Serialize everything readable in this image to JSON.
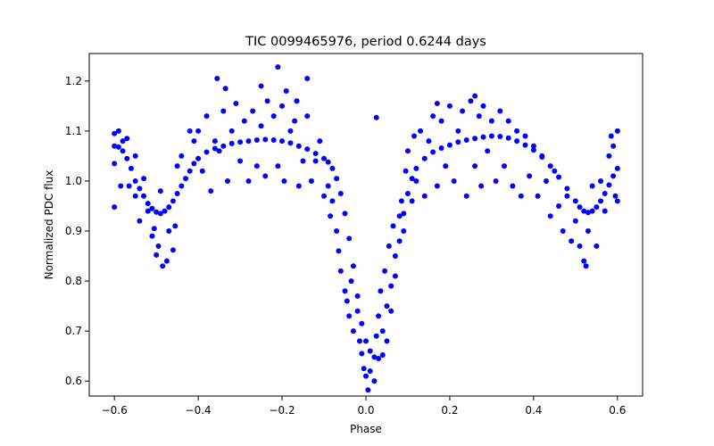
{
  "chart_data": {
    "type": "scatter",
    "title": "TIC 0099465976, period 0.6244 days",
    "xlabel": "Phase",
    "ylabel": "Normalized PDC flux",
    "xlim": [
      -0.66,
      0.66
    ],
    "ylim": [
      0.57,
      1.255
    ],
    "xticks": [
      -0.6,
      -0.4,
      -0.2,
      0.0,
      0.2,
      0.4,
      0.6
    ],
    "xtick_labels": [
      "−0.6",
      "−0.4",
      "−0.2",
      "0.0",
      "0.2",
      "0.4",
      "0.6"
    ],
    "yticks": [
      0.6,
      0.7,
      0.8,
      0.9,
      1.0,
      1.1,
      1.2
    ],
    "ytick_labels": [
      "0.6",
      "0.7",
      "0.8",
      "0.9",
      "1.0",
      "1.1",
      "1.2"
    ],
    "grid": false,
    "marker_color": "#0000ff",
    "series": [
      {
        "points": [
          [
            -0.6,
            1.07
          ],
          [
            -0.59,
            1.068
          ],
          [
            -0.58,
            1.06
          ],
          [
            -0.57,
            1.045
          ],
          [
            -0.56,
            1.025
          ],
          [
            -0.55,
            1.0
          ],
          [
            -0.54,
            0.985
          ],
          [
            -0.53,
            0.97
          ],
          [
            -0.52,
            0.955
          ],
          [
            -0.51,
            0.945
          ],
          [
            -0.5,
            0.938
          ],
          [
            -0.49,
            0.935
          ],
          [
            -0.48,
            0.94
          ],
          [
            -0.47,
            0.948
          ],
          [
            -0.46,
            0.96
          ],
          [
            -0.45,
            0.975
          ],
          [
            -0.44,
            0.99
          ],
          [
            -0.43,
            1.005
          ],
          [
            -0.42,
            1.02
          ],
          [
            -0.41,
            1.035
          ],
          [
            -0.4,
            1.045
          ],
          [
            -0.38,
            1.058
          ],
          [
            -0.36,
            1.065
          ],
          [
            -0.34,
            1.07
          ],
          [
            -0.32,
            1.075
          ],
          [
            -0.3,
            1.078
          ],
          [
            -0.28,
            1.08
          ],
          [
            -0.26,
            1.082
          ],
          [
            -0.24,
            1.083
          ],
          [
            -0.22,
            1.082
          ],
          [
            -0.2,
            1.08
          ],
          [
            -0.18,
            1.076
          ],
          [
            -0.16,
            1.07
          ],
          [
            -0.14,
            1.064
          ],
          [
            -0.12,
            1.055
          ],
          [
            -0.1,
            1.045
          ],
          [
            -0.09,
            1.038
          ],
          [
            -0.08,
            1.025
          ],
          [
            -0.07,
            1.005
          ],
          [
            -0.06,
            0.975
          ],
          [
            -0.05,
            0.935
          ],
          [
            -0.04,
            0.885
          ],
          [
            -0.03,
            0.83
          ],
          [
            -0.02,
            0.77
          ],
          [
            -0.01,
            0.715
          ],
          [
            0.0,
            0.68
          ],
          [
            0.01,
            0.66
          ],
          [
            0.02,
            0.648
          ],
          [
            0.03,
            0.645
          ],
          [
            0.04,
            0.652
          ],
          [
            0.05,
            0.68
          ],
          [
            0.06,
            0.74
          ],
          [
            0.07,
            0.81
          ],
          [
            0.08,
            0.88
          ],
          [
            0.09,
            0.935
          ],
          [
            0.1,
            0.975
          ],
          [
            0.11,
            1.005
          ],
          [
            0.12,
            1.025
          ],
          [
            0.14,
            1.045
          ],
          [
            0.16,
            1.058
          ],
          [
            0.18,
            1.066
          ],
          [
            0.2,
            1.072
          ],
          [
            0.22,
            1.078
          ],
          [
            0.24,
            1.082
          ],
          [
            0.26,
            1.085
          ],
          [
            0.28,
            1.088
          ],
          [
            0.3,
            1.09
          ],
          [
            0.32,
            1.089
          ],
          [
            0.34,
            1.086
          ],
          [
            0.36,
            1.08
          ],
          [
            0.38,
            1.072
          ],
          [
            0.4,
            1.062
          ],
          [
            0.42,
            1.048
          ],
          [
            0.44,
            1.03
          ],
          [
            0.46,
            1.008
          ],
          [
            0.48,
            0.985
          ],
          [
            0.5,
            0.96
          ],
          [
            0.51,
            0.948
          ],
          [
            0.52,
            0.94
          ],
          [
            0.53,
            0.937
          ],
          [
            0.54,
            0.94
          ],
          [
            0.55,
            0.948
          ],
          [
            0.56,
            0.96
          ],
          [
            0.57,
            0.975
          ],
          [
            0.58,
            0.992
          ],
          [
            0.59,
            1.01
          ],
          [
            0.6,
            1.025
          ],
          [
            -0.6,
            1.095
          ],
          [
            -0.6,
            1.035
          ],
          [
            -0.6,
            0.948
          ],
          [
            -0.59,
            1.1
          ],
          [
            -0.585,
            0.99
          ],
          [
            -0.58,
            1.08
          ],
          [
            -0.57,
            1.085
          ],
          [
            -0.565,
            0.99
          ],
          [
            -0.55,
            1.05
          ],
          [
            -0.55,
            0.97
          ],
          [
            -0.54,
            0.92
          ],
          [
            -0.53,
            1.005
          ],
          [
            -0.52,
            0.94
          ],
          [
            -0.51,
            0.89
          ],
          [
            -0.505,
            0.905
          ],
          [
            -0.5,
            0.852
          ],
          [
            -0.495,
            0.87
          ],
          [
            -0.49,
            0.98
          ],
          [
            -0.485,
            0.83
          ],
          [
            -0.475,
            0.84
          ],
          [
            -0.47,
            0.9
          ],
          [
            -0.46,
            0.862
          ],
          [
            -0.455,
            0.91
          ],
          [
            -0.45,
            1.03
          ],
          [
            -0.44,
            1.05
          ],
          [
            -0.42,
            1.1
          ],
          [
            -0.41,
            1.08
          ],
          [
            -0.4,
            1.1
          ],
          [
            -0.39,
            1.02
          ],
          [
            -0.38,
            1.13
          ],
          [
            -0.37,
            0.98
          ],
          [
            -0.36,
            1.08
          ],
          [
            -0.355,
            1.205
          ],
          [
            -0.35,
            1.06
          ],
          [
            -0.34,
            1.14
          ],
          [
            -0.335,
            1.185
          ],
          [
            -0.33,
            1.0
          ],
          [
            -0.32,
            1.1
          ],
          [
            -0.31,
            1.155
          ],
          [
            -0.3,
            1.04
          ],
          [
            -0.29,
            1.12
          ],
          [
            -0.28,
            1.0
          ],
          [
            -0.27,
            1.14
          ],
          [
            -0.26,
            1.03
          ],
          [
            -0.25,
            1.11
          ],
          [
            -0.24,
            1.01
          ],
          [
            -0.235,
            1.16
          ],
          [
            -0.22,
            1.13
          ],
          [
            -0.21,
            1.03
          ],
          [
            -0.2,
            1.15
          ],
          [
            -0.195,
            1.0
          ],
          [
            -0.19,
            1.18
          ],
          [
            -0.18,
            1.1
          ],
          [
            -0.17,
            1.12
          ],
          [
            -0.165,
            1.16
          ],
          [
            -0.16,
            0.99
          ],
          [
            -0.15,
            1.04
          ],
          [
            -0.14,
            1.13
          ],
          [
            -0.13,
            1.0
          ],
          [
            -0.12,
            1.04
          ],
          [
            -0.11,
            1.08
          ],
          [
            -0.1,
            0.97
          ],
          [
            -0.09,
            0.99
          ],
          [
            -0.085,
            0.93
          ],
          [
            -0.08,
            0.96
          ],
          [
            -0.07,
            0.9
          ],
          [
            -0.065,
            0.86
          ],
          [
            -0.06,
            0.82
          ],
          [
            -0.05,
            0.78
          ],
          [
            -0.045,
            0.76
          ],
          [
            -0.04,
            0.73
          ],
          [
            -0.035,
            0.8
          ],
          [
            -0.03,
            0.7
          ],
          [
            -0.02,
            0.74
          ],
          [
            -0.015,
            0.68
          ],
          [
            -0.01,
            0.655
          ],
          [
            -0.005,
            0.625
          ],
          [
            0.0,
            0.61
          ],
          [
            0.005,
            0.582
          ],
          [
            0.01,
            0.62
          ],
          [
            0.02,
            0.6
          ],
          [
            0.025,
            0.69
          ],
          [
            0.03,
            0.73
          ],
          [
            0.035,
            0.78
          ],
          [
            0.04,
            0.7
          ],
          [
            0.045,
            0.82
          ],
          [
            0.05,
            0.75
          ],
          [
            0.055,
            0.87
          ],
          [
            0.06,
            0.79
          ],
          [
            0.065,
            0.91
          ],
          [
            0.07,
            0.85
          ],
          [
            0.08,
            0.93
          ],
          [
            0.085,
            0.96
          ],
          [
            0.09,
            0.9
          ],
          [
            0.095,
            1.02
          ],
          [
            0.1,
            1.06
          ],
          [
            0.11,
            0.96
          ],
          [
            0.115,
            1.09
          ],
          [
            0.12,
            1.0
          ],
          [
            0.13,
            1.1
          ],
          [
            0.14,
            0.97
          ],
          [
            0.15,
            1.08
          ],
          [
            0.16,
            1.13
          ],
          [
            0.17,
            0.99
          ],
          [
            0.18,
            1.12
          ],
          [
            0.19,
            1.03
          ],
          [
            0.2,
            1.15
          ],
          [
            0.21,
            1.0
          ],
          [
            0.22,
            1.1
          ],
          [
            0.23,
            1.14
          ],
          [
            0.24,
            0.97
          ],
          [
            0.25,
            1.16
          ],
          [
            0.26,
            1.03
          ],
          [
            0.27,
            1.13
          ],
          [
            0.275,
            0.99
          ],
          [
            0.28,
            1.15
          ],
          [
            0.29,
            1.06
          ],
          [
            0.3,
            1.12
          ],
          [
            0.31,
            1.0
          ],
          [
            0.32,
            1.14
          ],
          [
            0.33,
            1.03
          ],
          [
            0.34,
            1.12
          ],
          [
            0.35,
            0.99
          ],
          [
            0.36,
            1.1
          ],
          [
            0.37,
            0.97
          ],
          [
            0.38,
            1.09
          ],
          [
            0.39,
            1.01
          ],
          [
            0.4,
            1.07
          ],
          [
            0.41,
            0.97
          ],
          [
            0.42,
            1.05
          ],
          [
            0.43,
            1.0
          ],
          [
            0.44,
            0.93
          ],
          [
            0.45,
            1.02
          ],
          [
            0.46,
            0.95
          ],
          [
            0.47,
            0.9
          ],
          [
            0.48,
            0.97
          ],
          [
            0.49,
            0.88
          ],
          [
            0.5,
            0.92
          ],
          [
            0.51,
            0.87
          ],
          [
            0.52,
            0.84
          ],
          [
            0.525,
            0.83
          ],
          [
            0.53,
            0.9
          ],
          [
            0.54,
            0.99
          ],
          [
            0.55,
            0.87
          ],
          [
            0.56,
            1.0
          ],
          [
            0.57,
            0.94
          ],
          [
            0.58,
            1.05
          ],
          [
            0.585,
            1.09
          ],
          [
            0.59,
            1.07
          ],
          [
            0.595,
            0.97
          ],
          [
            0.6,
            1.1
          ],
          [
            0.6,
            0.96
          ],
          [
            0.025,
            1.127
          ],
          [
            -0.21,
            1.228
          ],
          [
            -0.14,
            1.205
          ],
          [
            -0.25,
            1.19
          ],
          [
            0.17,
            1.155
          ],
          [
            0.26,
            1.17
          ],
          [
            -0.165,
            1.16
          ]
        ]
      }
    ]
  }
}
